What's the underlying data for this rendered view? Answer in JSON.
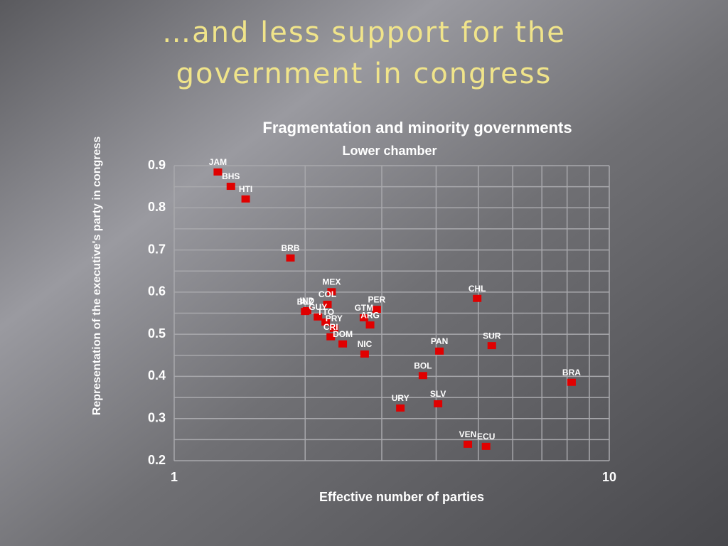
{
  "slide_title": [
    "…and less support for the",
    "government in congress"
  ],
  "chart_data": {
    "type": "scatter",
    "title": "Fragmentation and minority governments",
    "subtitle": "Lower chamber",
    "x_label": "Effective number of parties",
    "y_label": "Representation of the executive's party in congress",
    "xscale": "log",
    "xlim": [
      1,
      10
    ],
    "xticks": [
      1,
      10
    ],
    "xminor": [
      2,
      3,
      4,
      5,
      6,
      7,
      8,
      9
    ],
    "ylim": [
      0.2,
      0.9
    ],
    "yticks": [
      0.2,
      0.3,
      0.4,
      0.5,
      0.6,
      0.7,
      0.8,
      0.9
    ],
    "yminor": [
      0.25,
      0.35,
      0.45,
      0.55,
      0.65,
      0.75,
      0.85
    ],
    "grid": true,
    "color": "#e00000",
    "labels": [
      "JAM",
      "BHS",
      "HTI",
      "BRB",
      "MEX",
      "COL",
      "BLZ",
      "IND",
      "GUY",
      "TTO",
      "PER",
      "GTM",
      "ARG",
      "PRY",
      "CRI",
      "DOM",
      "NIC",
      "CHL",
      "SUR",
      "PAN",
      "BOL",
      "BRA",
      "SLV",
      "URY",
      "VEN",
      "ECU"
    ],
    "x": [
      1.26,
      1.35,
      1.46,
      1.85,
      2.3,
      2.25,
      2.0,
      2.02,
      2.14,
      2.23,
      2.92,
      2.73,
      2.82,
      2.33,
      2.29,
      2.44,
      2.74,
      4.97,
      5.37,
      4.07,
      3.73,
      8.19,
      4.04,
      3.31,
      4.73,
      5.21
    ],
    "y": [
      0.885,
      0.851,
      0.821,
      0.681,
      0.601,
      0.571,
      0.554,
      0.556,
      0.541,
      0.529,
      0.559,
      0.539,
      0.522,
      0.514,
      0.494,
      0.477,
      0.453,
      0.585,
      0.473,
      0.46,
      0.402,
      0.386,
      0.335,
      0.325,
      0.239,
      0.234
    ]
  }
}
